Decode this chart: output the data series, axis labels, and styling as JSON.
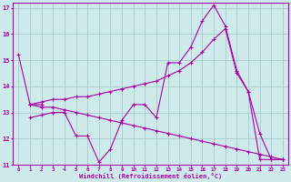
{
  "xlabel": "Windchill (Refroidissement éolien,°C)",
  "xlim": [
    -0.5,
    23.5
  ],
  "ylim": [
    11,
    17.2
  ],
  "xticks": [
    0,
    1,
    2,
    3,
    4,
    5,
    6,
    7,
    8,
    9,
    10,
    11,
    12,
    13,
    14,
    15,
    16,
    17,
    18,
    19,
    20,
    21,
    22,
    23
  ],
  "yticks": [
    11,
    12,
    13,
    14,
    15,
    16,
    17
  ],
  "bg_color": "#ceeaea",
  "line_color": "#aa00aa",
  "grid_color": "#aacccc",
  "lines": [
    {
      "x": [
        0,
        1,
        2
      ],
      "y": [
        15.2,
        13.3,
        13.3
      ]
    },
    {
      "x": [
        1,
        2,
        3,
        4,
        5,
        6,
        7,
        8,
        9,
        10,
        11,
        12,
        13,
        14,
        15,
        16,
        17,
        18,
        19,
        20,
        21,
        22,
        23
      ],
      "y": [
        12.8,
        12.9,
        13.0,
        13.0,
        12.1,
        12.1,
        11.1,
        11.6,
        12.7,
        13.3,
        13.3,
        12.8,
        14.9,
        14.9,
        15.5,
        16.5,
        17.1,
        16.3,
        14.6,
        13.8,
        12.2,
        11.2,
        11.2
      ]
    },
    {
      "x": [
        1,
        2,
        3,
        4,
        5,
        6,
        7,
        8,
        9,
        10,
        11,
        12,
        13,
        14,
        15,
        16,
        17,
        18,
        19,
        20,
        21,
        22,
        23
      ],
      "y": [
        13.3,
        13.4,
        13.5,
        13.5,
        13.6,
        13.6,
        13.7,
        13.8,
        13.9,
        14.0,
        14.1,
        14.2,
        14.4,
        14.6,
        14.9,
        15.3,
        15.8,
        16.2,
        14.5,
        13.8,
        11.2,
        11.2,
        11.2
      ]
    },
    {
      "x": [
        1,
        2,
        3,
        4,
        5,
        6,
        7,
        8,
        9,
        10,
        11,
        12,
        13,
        14,
        15,
        16,
        17,
        18,
        19,
        20,
        21,
        22,
        23
      ],
      "y": [
        13.3,
        13.2,
        13.2,
        13.1,
        13.0,
        12.9,
        12.8,
        12.7,
        12.6,
        12.5,
        12.4,
        12.3,
        12.2,
        12.1,
        12.0,
        11.9,
        11.8,
        11.7,
        11.6,
        11.5,
        11.4,
        11.3,
        11.2
      ]
    }
  ]
}
